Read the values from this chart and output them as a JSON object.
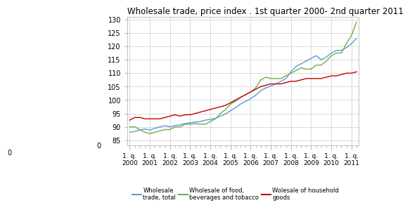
{
  "title": "Wholesale trade, price index . 1st quarter 2000- 2nd quarter 2011",
  "title_fontsize": 8.5,
  "background_color": "#ffffff",
  "grid_color": "#cccccc",
  "line_colors": {
    "total": "#5b9bd5",
    "food": "#70ad47",
    "household": "#c00000"
  },
  "legend_labels": [
    "Wholesale\ntrade, total",
    "Wholesale of food,\nbeverages and tobacco",
    "Wolesale of household\ngoods"
  ],
  "xtick_labels": [
    "1. q.\n2000",
    "1. q.\n2001",
    "1. q.\n2002",
    "1. q.\n2003",
    "1. q.\n2004",
    "1. q.\n2005",
    "1. q.\n2006",
    "1. q.\n2007",
    "1. q.\n2008",
    "1. q.\n2009",
    "1. q.\n2010",
    "1. q.\n2011"
  ],
  "ylim": [
    83,
    131
  ],
  "yticks": [
    85,
    90,
    95,
    100,
    105,
    110,
    115,
    120,
    125,
    130
  ],
  "total": [
    88.0,
    88.3,
    88.8,
    89.2,
    88.8,
    89.5,
    90.0,
    90.5,
    90.0,
    90.5,
    90.8,
    91.2,
    91.5,
    91.8,
    92.0,
    92.5,
    92.8,
    93.2,
    94.0,
    94.8,
    96.0,
    97.2,
    98.5,
    99.5,
    100.5,
    101.8,
    103.5,
    104.5,
    105.2,
    106.0,
    107.0,
    108.0,
    110.5,
    112.5,
    113.5,
    114.5,
    115.5,
    116.5,
    115.0,
    116.0,
    117.5,
    118.5,
    118.5,
    119.5,
    121.0,
    123.0
  ],
  "food": [
    90.0,
    90.0,
    89.0,
    88.0,
    87.5,
    88.0,
    88.5,
    89.0,
    89.0,
    90.0,
    90.0,
    91.0,
    91.0,
    91.2,
    91.0,
    91.0,
    92.0,
    93.0,
    95.0,
    96.5,
    98.5,
    99.5,
    101.0,
    102.0,
    103.0,
    104.5,
    107.5,
    108.5,
    108.0,
    108.0,
    108.0,
    109.0,
    110.0,
    111.0,
    112.0,
    111.5,
    111.5,
    113.0,
    113.0,
    114.5,
    116.5,
    117.5,
    117.5,
    121.0,
    124.0,
    129.0
  ],
  "household": [
    92.5,
    93.5,
    93.5,
    93.0,
    93.0,
    93.0,
    93.0,
    93.5,
    94.0,
    94.5,
    94.0,
    94.5,
    94.5,
    95.0,
    95.5,
    96.0,
    96.5,
    97.0,
    97.5,
    98.0,
    99.0,
    100.0,
    101.0,
    102.0,
    103.0,
    104.0,
    105.0,
    105.5,
    106.0,
    106.0,
    106.0,
    106.5,
    107.0,
    107.0,
    107.5,
    108.0,
    108.0,
    108.0,
    108.0,
    108.5,
    109.0,
    109.0,
    109.5,
    110.0,
    110.0,
    110.5
  ]
}
